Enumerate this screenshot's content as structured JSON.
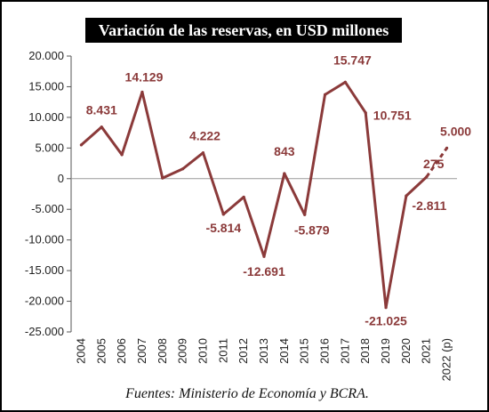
{
  "chart_data": {
    "type": "line",
    "title": "Variación de las reservas, en USD millones",
    "source": "Fuentes: Ministerio de Economía y BCRA.",
    "categories": [
      "2004",
      "2005",
      "2006",
      "2007",
      "2008",
      "2009",
      "2010",
      "2011",
      "2012",
      "2013",
      "2014",
      "2015",
      "2016",
      "2017",
      "2018",
      "2019",
      "2020",
      "2021",
      "2022 (p)"
    ],
    "values": [
      5500,
      8431,
      3900,
      14129,
      100,
      1600,
      4222,
      -5814,
      -3000,
      -12691,
      843,
      -5879,
      13700,
      15747,
      10751,
      -21025,
      -2811,
      275,
      5000
    ],
    "projected_last": true,
    "data_labels": [
      {
        "index": 1,
        "text": "8.431"
      },
      {
        "index": 3,
        "text": "14.129"
      },
      {
        "index": 6,
        "text": "4.222"
      },
      {
        "index": 7,
        "text": "-5.814"
      },
      {
        "index": 9,
        "text": "-12.691"
      },
      {
        "index": 10,
        "text": "843"
      },
      {
        "index": 11,
        "text": "-5.879"
      },
      {
        "index": 13,
        "text": "15.747"
      },
      {
        "index": 14,
        "text": "10.751"
      },
      {
        "index": 15,
        "text": "-21.025"
      },
      {
        "index": 16,
        "text": "-2.811"
      },
      {
        "index": 17,
        "text": "275"
      },
      {
        "index": 18,
        "text": "5.000"
      }
    ],
    "ylim": [
      -25000,
      20000
    ],
    "yticks": [
      20000,
      15000,
      10000,
      5000,
      0,
      -5000,
      -10000,
      -15000,
      -20000,
      -25000
    ],
    "ytick_labels": [
      "20.000",
      "15.000",
      "10.000",
      "5.000",
      "0",
      "-5.000",
      "-10.000",
      "-15.000",
      "-20.000",
      "-25.000"
    ],
    "series_color": "#8b3a3a",
    "title_background": "#000000"
  }
}
